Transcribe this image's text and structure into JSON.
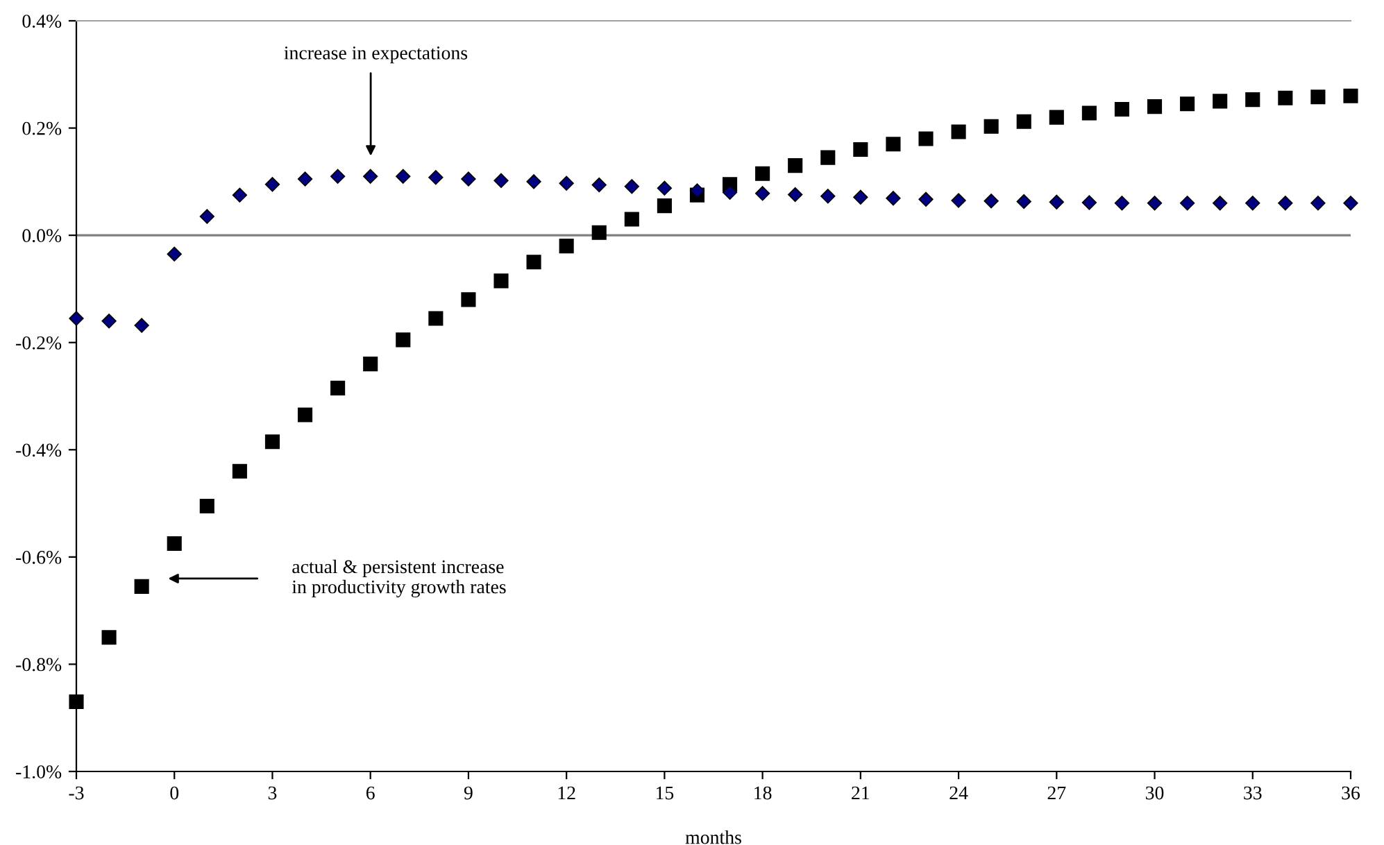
{
  "chart_data": {
    "type": "scatter",
    "xlabel": "months",
    "x": [
      -3,
      -2,
      -1,
      0,
      1,
      2,
      3,
      4,
      5,
      6,
      7,
      8,
      9,
      10,
      11,
      12,
      13,
      14,
      15,
      16,
      17,
      18,
      19,
      20,
      21,
      22,
      23,
      24,
      25,
      26,
      27,
      28,
      29,
      30,
      31,
      32,
      33,
      34,
      35,
      36
    ],
    "series": [
      {
        "color": "#000080",
        "marker": "diamond",
        "values": [
          -0.155,
          -0.16,
          -0.168,
          -0.035,
          0.035,
          0.075,
          0.095,
          0.105,
          0.11,
          0.11,
          0.11,
          0.108,
          0.105,
          0.102,
          0.1,
          0.097,
          0.094,
          0.091,
          0.088,
          0.083,
          0.08,
          0.078,
          0.076,
          0.073,
          0.071,
          0.069,
          0.067,
          0.065,
          0.064,
          0.063,
          0.062,
          0.061,
          0.06,
          0.06,
          0.06,
          0.06,
          0.06,
          0.06,
          0.06,
          0.06
        ]
      },
      {
        "color": "#000000",
        "marker": "square",
        "values": [
          -0.87,
          -0.75,
          -0.655,
          -0.575,
          -0.505,
          -0.44,
          -0.385,
          -0.335,
          -0.285,
          -0.24,
          -0.195,
          -0.155,
          -0.12,
          -0.085,
          -0.05,
          -0.02,
          0.005,
          0.03,
          0.055,
          0.075,
          0.095,
          0.115,
          0.13,
          0.145,
          0.16,
          0.17,
          0.18,
          0.193,
          0.203,
          0.212,
          0.22,
          0.228,
          0.235,
          0.24,
          0.245,
          0.25,
          0.253,
          0.256,
          0.258,
          0.26
        ]
      }
    ],
    "xlim": [
      -3,
      36
    ],
    "xticks": [
      -3,
      0,
      3,
      6,
      9,
      12,
      15,
      18,
      21,
      24,
      27,
      30,
      33,
      36
    ],
    "ylim": [
      -1.0,
      0.4
    ],
    "yticks": [
      {
        "value": -1.0,
        "label": "-1.0%"
      },
      {
        "value": -0.8,
        "label": "-0.8%"
      },
      {
        "value": -0.6,
        "label": "-0.6%"
      },
      {
        "value": -0.4,
        "label": "-0.4%"
      },
      {
        "value": -0.2,
        "label": "-0.2%"
      },
      {
        "value": 0.0,
        "label": "0.0%"
      },
      {
        "value": 0.2,
        "label": "0.2%"
      },
      {
        "value": 0.4,
        "label": "0.4%"
      }
    ],
    "ref_lines": [
      {
        "axis": "y",
        "value": 0,
        "color": "#808080"
      }
    ],
    "annotations": [
      "increase in expectations",
      "actual & persistent increase\nin productivity growth rates"
    ],
    "grid": false,
    "legend": false
  }
}
